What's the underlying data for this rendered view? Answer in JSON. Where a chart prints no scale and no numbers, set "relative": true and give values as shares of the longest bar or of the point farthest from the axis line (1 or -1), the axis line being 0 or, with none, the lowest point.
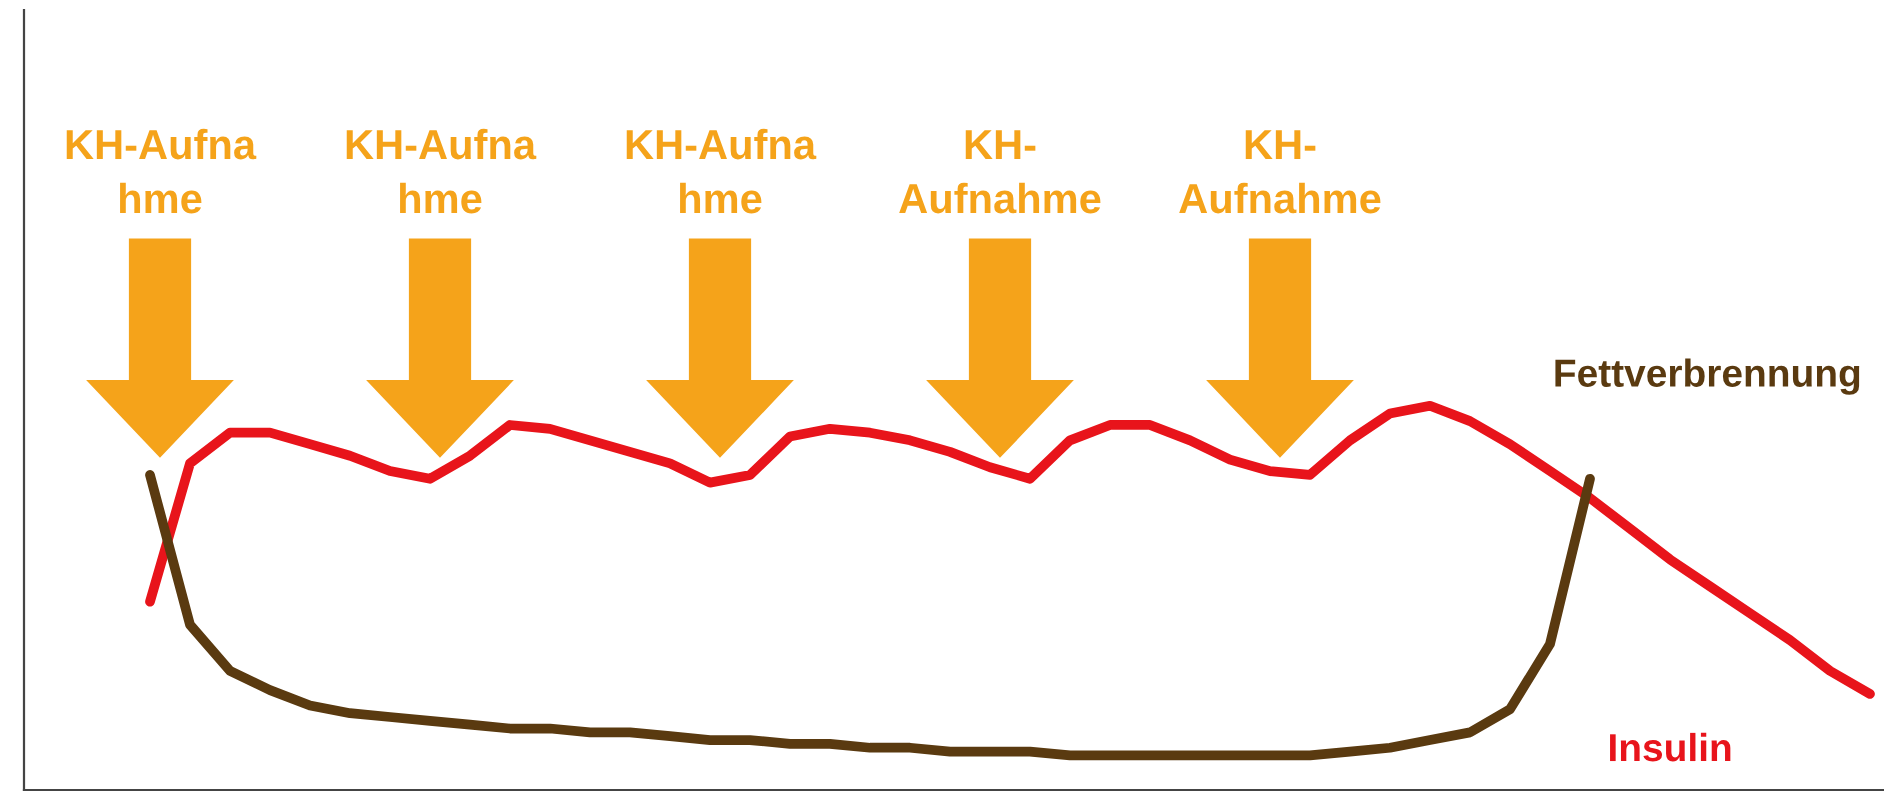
{
  "chart_data": {
    "type": "line",
    "relative": true,
    "legend": false,
    "marker": "none",
    "line_style": "solid",
    "categories": [
      null,
      null,
      null,
      null,
      null,
      null,
      null,
      null,
      null,
      null,
      null,
      null,
      null,
      null,
      null,
      null,
      null,
      null,
      null,
      null,
      null,
      null,
      null,
      null,
      null,
      null,
      null,
      null,
      null,
      null,
      null,
      null,
      null,
      null,
      null,
      null,
      null,
      null,
      null,
      null,
      null,
      null,
      null,
      null
    ],
    "series": [
      {
        "name": "Insulin",
        "color": "#e8141b",
        "values": [
          0.49,
          0.85,
          0.93,
          0.93,
          0.9,
          0.87,
          0.83,
          0.81,
          0.87,
          0.95,
          0.94,
          0.91,
          0.88,
          0.85,
          0.8,
          0.82,
          0.92,
          0.94,
          0.93,
          0.91,
          0.88,
          0.84,
          0.81,
          0.91,
          0.95,
          0.95,
          0.91,
          0.86,
          0.83,
          0.82,
          0.91,
          0.98,
          1.0,
          0.96,
          0.9,
          0.83,
          0.76,
          0.68,
          0.6,
          0.53,
          0.46,
          0.39,
          0.31,
          0.25
        ]
      },
      {
        "name": "Fettverbrennung",
        "color": "#5a3a10",
        "values": [
          0.82,
          0.43,
          0.31,
          0.26,
          0.22,
          0.2,
          0.19,
          0.18,
          0.17,
          0.16,
          0.16,
          0.15,
          0.15,
          0.14,
          0.13,
          0.13,
          0.12,
          0.12,
          0.11,
          0.11,
          0.1,
          0.1,
          0.1,
          0.09,
          0.09,
          0.09,
          0.09,
          0.09,
          0.09,
          0.09,
          0.1,
          0.11,
          0.13,
          0.15,
          0.21,
          0.38,
          0.81,
          null,
          null,
          null,
          null,
          null,
          null,
          null
        ]
      }
    ],
    "annotations": [
      "KH-Aufna\nhme",
      "KH-Aufna\nhme",
      "KH-Aufna\nhme",
      "KH-\nAufnahme",
      "KH-\nAufnahme"
    ]
  }
}
